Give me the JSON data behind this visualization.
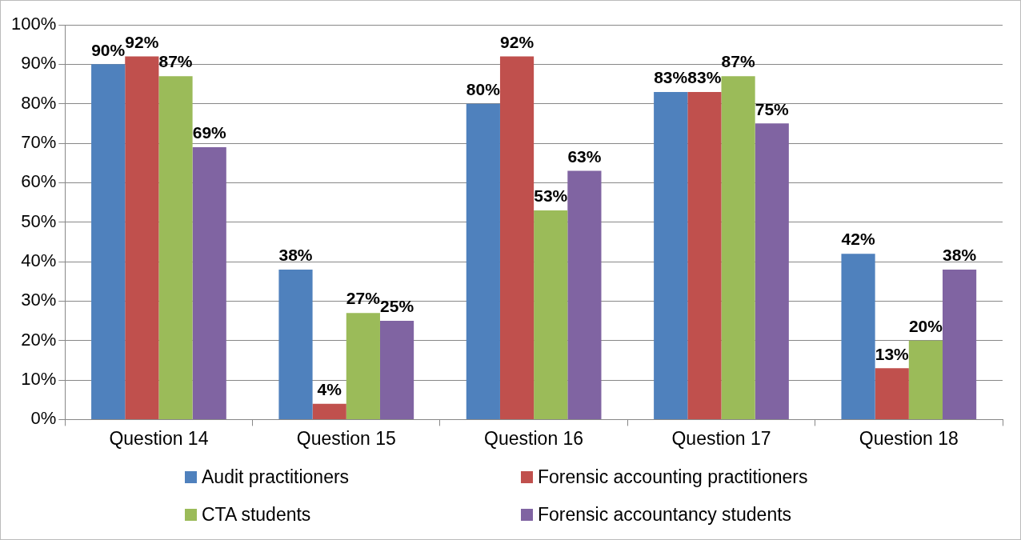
{
  "chart_data": {
    "type": "bar",
    "categories": [
      "Question 14",
      "Question 15",
      "Question 16",
      "Question 17",
      "Question 18"
    ],
    "series": [
      {
        "name": "Audit practitioners",
        "color": "#4f81bd",
        "values": [
          90,
          38,
          80,
          83,
          42
        ],
        "value_labels": [
          "90%",
          "38%",
          "80%",
          "83%",
          "42%"
        ]
      },
      {
        "name": "Forensic accounting practitioners",
        "color": "#c0504d",
        "values": [
          92,
          4,
          92,
          83,
          13
        ],
        "value_labels": [
          "92%",
          "4%",
          "92%",
          "83%",
          "13%"
        ]
      },
      {
        "name": "CTA students",
        "color": "#9bbb59",
        "values": [
          87,
          27,
          53,
          87,
          20
        ],
        "value_labels": [
          "87%",
          "27%",
          "53%",
          "87%",
          "20%"
        ]
      },
      {
        "name": "Forensic accountancy students",
        "color": "#8064a2",
        "values": [
          69,
          25,
          63,
          75,
          38
        ],
        "value_labels": [
          "69%",
          "25%",
          "63%",
          "75%",
          "38%"
        ]
      }
    ],
    "ylim": [
      0,
      100
    ],
    "yticks": [
      {
        "value": 0,
        "label": "0%"
      },
      {
        "value": 10,
        "label": "10%"
      },
      {
        "value": 20,
        "label": "20%"
      },
      {
        "value": 30,
        "label": "30%"
      },
      {
        "value": 40,
        "label": "40%"
      },
      {
        "value": 50,
        "label": "50%"
      },
      {
        "value": 60,
        "label": "60%"
      },
      {
        "value": 70,
        "label": "70%"
      },
      {
        "value": 80,
        "label": "80%"
      },
      {
        "value": 90,
        "label": "90%"
      },
      {
        "value": 100,
        "label": "100%"
      }
    ],
    "grid": "y",
    "legend": "bottom"
  }
}
